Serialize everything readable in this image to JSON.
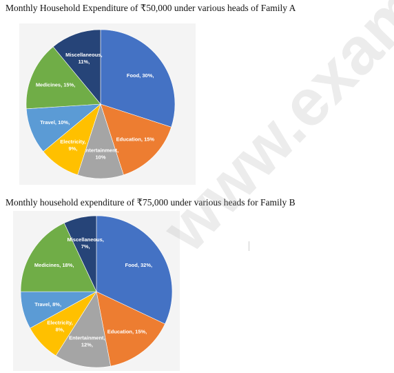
{
  "titles": {
    "a": "Monthly Household Expenditure of ₹50,000 under various heads of Family A",
    "b": "Monthly household expenditure of ₹75,000 under various heads for Family B"
  },
  "watermark": "www.exam",
  "chart_data": [
    {
      "type": "pie",
      "title": "Monthly Household Expenditure of ₹50,000 under various heads of Family A",
      "categories": [
        "Food",
        "Education",
        "Entertainment",
        "Electricity",
        "Travel",
        "Medicines",
        "Miscellaneous"
      ],
      "values": [
        30,
        15,
        10,
        9,
        10,
        15,
        11
      ],
      "labels": [
        "Food, 30%,",
        "Education, 15%",
        "Entertainment, 10%",
        "Electricity, 9%,",
        "Travel, 10%,",
        "Medicines, 15%,",
        "Miscellaneous, 11%,"
      ],
      "colors": [
        "#4472c4",
        "#ed7d31",
        "#a5a5a5",
        "#ffc000",
        "#5b9bd5",
        "#70ad47",
        "#264478"
      ]
    },
    {
      "type": "pie",
      "title": "Monthly household expenditure of ₹75,000 under various heads for Family B",
      "categories": [
        "Food",
        "Education",
        "Entertainment",
        "Electricity",
        "Travel",
        "Medicines",
        "Miscellaneous"
      ],
      "values": [
        32,
        15,
        12,
        8,
        8,
        18,
        7
      ],
      "labels": [
        "Food, 32%,",
        "Education, 15%,",
        "Entertainment, 12%,",
        "Electricity, 8%,",
        "Travel, 8%,",
        "Medicines, 18%,",
        "Miscellaneous, 7%,"
      ],
      "colors": [
        "#4472c4",
        "#ed7d31",
        "#a5a5a5",
        "#ffc000",
        "#5b9bd5",
        "#70ad47",
        "#264478"
      ]
    }
  ]
}
